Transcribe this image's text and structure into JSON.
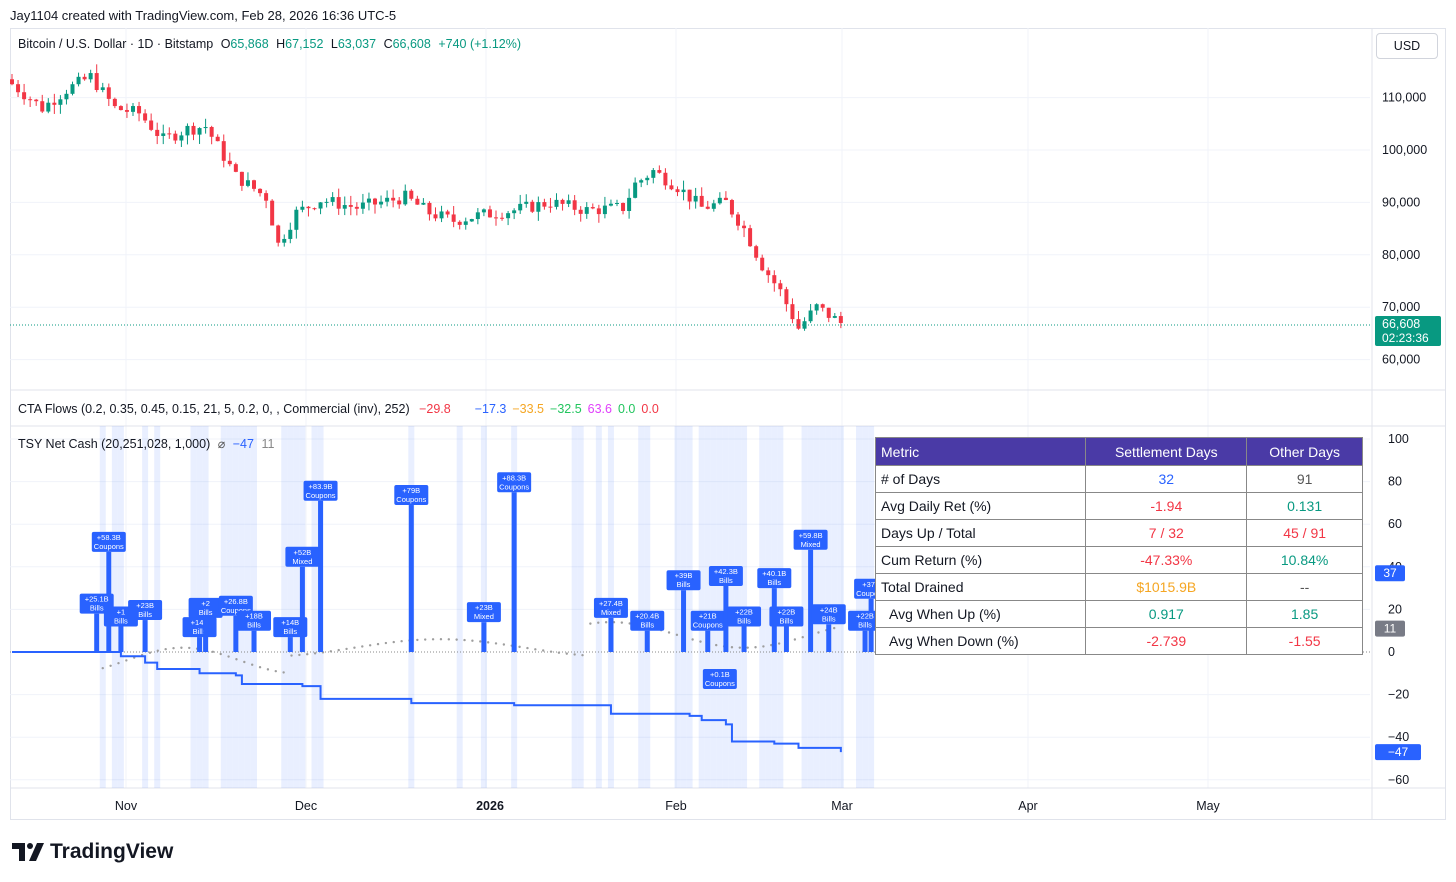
{
  "header": {
    "caption": "Jay1104 created with TradingView.com, Feb 28, 2026 16:36 UTC-5"
  },
  "symbol": {
    "name": "Bitcoin / U.S. Dollar · 1D · Bitstamp",
    "o_label": "O",
    "o": "65,868",
    "h_label": "H",
    "h": "67,152",
    "l_label": "L",
    "l": "63,037",
    "c_label": "C",
    "c": "66,608",
    "change": "+740 (+1.12%)",
    "currency": "USD",
    "last_price": "66,608",
    "countdown": "02:23:36"
  },
  "cta": {
    "title": "CTA Flows (0.2, 0.35, 0.45, 0.15, 21, 5, 0.2, 0, , Commercial (inv), 252)",
    "values": [
      {
        "text": "−29.8",
        "color": "#f23645"
      },
      {
        "text": "−17.3",
        "color": "#2962ff"
      },
      {
        "text": "−33.5",
        "color": "#f5a623"
      },
      {
        "text": "−32.5",
        "color": "#22c55e"
      },
      {
        "text": "63.6",
        "color": "#e040fb"
      },
      {
        "text": "0.0",
        "color": "#22c55e"
      },
      {
        "text": "0.0",
        "color": "#f23645"
      }
    ]
  },
  "tsy": {
    "title": "TSY Net Cash (20,251,028, 1,000)",
    "symbol": "⌀",
    "v1": "−47",
    "v2": "11",
    "badge_blue": "37",
    "badge_gray": "11",
    "badge_last": "−47"
  },
  "price_axis": [
    "110,000",
    "100,000",
    "90,000",
    "80,000",
    "70,000",
    "60,000"
  ],
  "ind_axis": [
    "100",
    "80",
    "60",
    "40",
    "20",
    "0",
    "−20",
    "−40",
    "−60"
  ],
  "time_axis": [
    "Nov",
    "Dec",
    "2026",
    "Jan",
    "Feb",
    "Mar",
    "Apr",
    "May"
  ],
  "table": {
    "headers": [
      "Metric",
      "Settlement Days",
      "Other Days"
    ],
    "rows": [
      {
        "metric": "# of Days",
        "s": "32",
        "o": "91"
      },
      {
        "metric": "Avg Daily Ret (%)",
        "s": "-1.94",
        "o": "0.131"
      },
      {
        "metric": "Days Up / Total",
        "s": "7 / 32",
        "o": "45 / 91"
      },
      {
        "metric": "Cum Return (%)",
        "s": "-47.33%",
        "o": "10.84%"
      },
      {
        "metric": "Total Drained",
        "s": "$1015.9B",
        "o": "--"
      },
      {
        "metric": "  Avg When Up (%)",
        "s": "0.917",
        "o": "1.85"
      },
      {
        "metric": "  Avg When Down (%)",
        "s": "-2.739",
        "o": "-1.55"
      }
    ]
  },
  "labels": [
    {
      "amt": "+58.3B",
      "kind": "Coupons",
      "day": 16,
      "v": 47
    },
    {
      "amt": "+25.1B",
      "kind": "Bills",
      "day": 14,
      "v": 18
    },
    {
      "amt": "+1",
      "kind": "Bills",
      "day": 18,
      "v": 12
    },
    {
      "amt": "+23B",
      "kind": "Bills",
      "day": 22,
      "v": 15
    },
    {
      "amt": "+14B",
      "kind": "Bills",
      "day": 31,
      "v": 7
    },
    {
      "amt": "+2",
      "kind": "Bills",
      "day": 32,
      "v": 16
    },
    {
      "amt": "+26.8B",
      "kind": "Coupons",
      "day": 37,
      "v": 17
    },
    {
      "amt": "+18B",
      "kind": "Bills",
      "day": 40,
      "v": 10
    },
    {
      "amt": "+14B",
      "kind": "Bills",
      "day": 46,
      "v": 7
    },
    {
      "amt": "+52B",
      "kind": "Mixed",
      "day": 48,
      "v": 40
    },
    {
      "amt": "+83.9B",
      "kind": "Coupons",
      "day": 51,
      "v": 71
    },
    {
      "amt": "+79B",
      "kind": "Coupons",
      "day": 66,
      "v": 69
    },
    {
      "amt": "+23B",
      "kind": "Mixed",
      "day": 78,
      "v": 14
    },
    {
      "amt": "+88.3B",
      "kind": "Coupons",
      "day": 83,
      "v": 75
    },
    {
      "amt": "+27.4B",
      "kind": "Mixed",
      "day": 99,
      "v": 16
    },
    {
      "amt": "+20.4B",
      "kind": "Bills",
      "day": 105,
      "v": 10
    },
    {
      "amt": "+39B",
      "kind": "Bills",
      "day": 111,
      "v": 29
    },
    {
      "amt": "+21B",
      "kind": "Coupons",
      "day": 115,
      "v": 10
    },
    {
      "amt": "+42.3B",
      "kind": "Bills",
      "day": 118,
      "v": 31
    },
    {
      "amt": "+22B",
      "kind": "Bills",
      "day": 121,
      "v": 12
    },
    {
      "amt": "+0.1B",
      "kind": "Coupons",
      "day": 117,
      "v": -8
    },
    {
      "amt": "+40.1B",
      "kind": "Bills",
      "day": 126,
      "v": 30
    },
    {
      "amt": "+22B",
      "kind": "Bills",
      "day": 128,
      "v": 12
    },
    {
      "amt": "+59.8B",
      "kind": "Mixed",
      "day": 132,
      "v": 48
    },
    {
      "amt": "+24B",
      "kind": "Bills",
      "day": 135,
      "v": 13
    },
    {
      "amt": "+37B",
      "kind": "Coupons",
      "day": 142,
      "v": 25
    },
    {
      "amt": "+22B",
      "kind": "Bills",
      "day": 141,
      "v": 10
    }
  ],
  "colors": {
    "up": "#089981",
    "down": "#f23645",
    "accent": "#2962ff",
    "table_header": "#4a3aa6"
  },
  "brand": "TradingView"
}
